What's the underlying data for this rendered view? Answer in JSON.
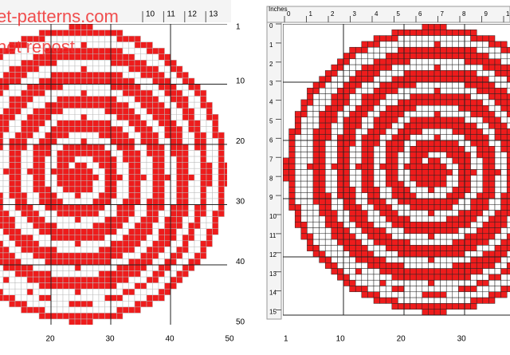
{
  "watermark": {
    "line1": "et-patterns.com",
    "line2": "not repost"
  },
  "left": {
    "top_ruler": [
      "10",
      "11",
      "12",
      "13"
    ],
    "right_ruler": [
      "1",
      "10",
      "20",
      "30",
      "40",
      "50"
    ],
    "bottom_ruler": [
      "20",
      "30",
      "40",
      "50"
    ]
  },
  "right": {
    "units": "Inches",
    "top_ruler": [
      "0",
      "1",
      "2",
      "3",
      "4",
      "5",
      "6",
      "7",
      "8",
      "9",
      "10"
    ],
    "left_ruler": [
      "0",
      "1",
      "2",
      "3",
      "4",
      "5",
      "6",
      "7",
      "8",
      "9",
      "10",
      "11",
      "12",
      "13",
      "14",
      "15"
    ],
    "bottom_ruler": [
      "1",
      "10",
      "20",
      "30"
    ]
  }
}
